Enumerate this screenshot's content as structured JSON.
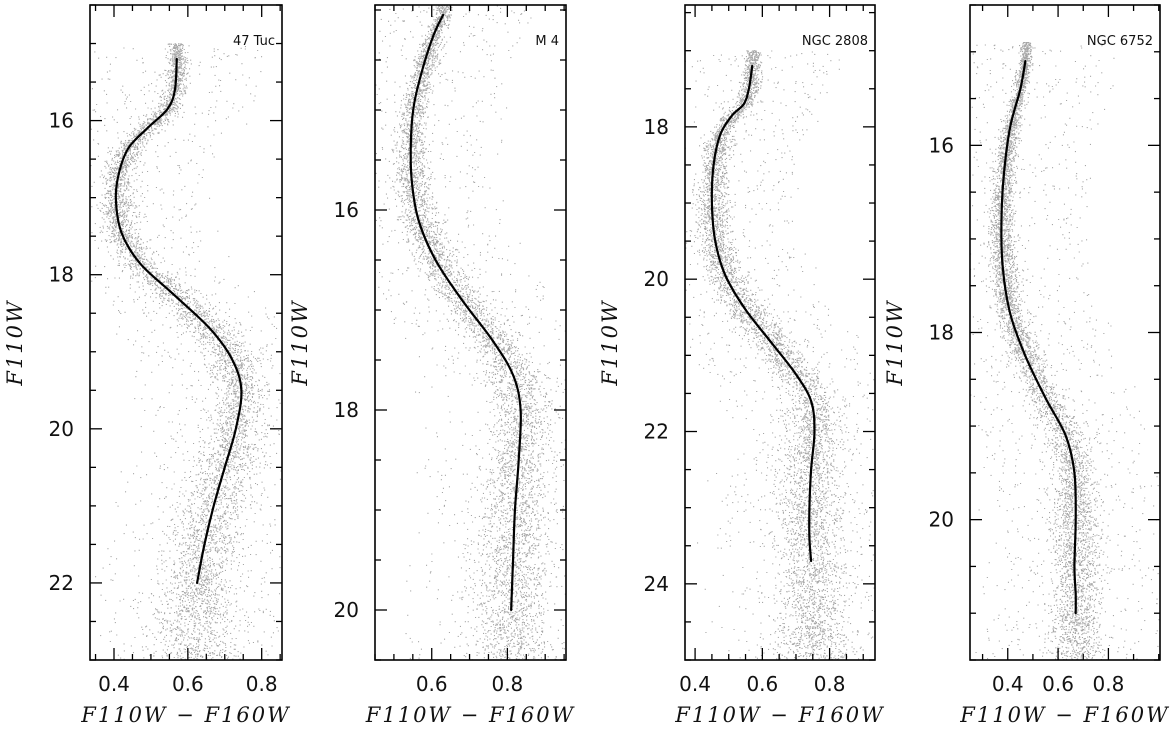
{
  "chart_data": [
    {
      "type": "scatter",
      "panel_label": "47 Tuc",
      "xlabel": "F110W − F160W",
      "ylabel": "F110W",
      "xlim": [
        0.335,
        0.855
      ],
      "ylim": [
        23.0,
        14.5
      ],
      "y_inverted": true,
      "xticks_major": [
        0.4,
        0.6,
        0.8
      ],
      "xtick_labels": [
        "0.4",
        "0.6",
        "0.8"
      ],
      "xticks_minor_step": 0.05,
      "yticks_major": [
        16,
        18,
        20,
        22
      ],
      "ytick_labels": [
        "16",
        "18",
        "20",
        "22"
      ],
      "yticks_minor_step": 0.5,
      "ridge_line": {
        "x": [
          0.57,
          0.565,
          0.545,
          0.49,
          0.44,
          0.415,
          0.405,
          0.42,
          0.47,
          0.56,
          0.66,
          0.72,
          0.745,
          0.73,
          0.7,
          0.67,
          0.645,
          0.625
        ],
        "y": [
          15.2,
          15.6,
          15.85,
          16.1,
          16.35,
          16.65,
          17.0,
          17.45,
          17.85,
          18.25,
          18.7,
          19.1,
          19.5,
          20.0,
          20.5,
          21.0,
          21.5,
          22.0
        ]
      },
      "color": "#000000",
      "point_color": "#8a8a8a"
    },
    {
      "type": "scatter",
      "panel_label": "M 4",
      "xlabel": "F110W − F160W",
      "ylabel": "F110W",
      "xlim": [
        0.45,
        0.955
      ],
      "ylim": [
        20.5,
        13.95
      ],
      "y_inverted": true,
      "xticks_major": [
        0.6,
        0.8
      ],
      "xtick_labels": [
        "0.6",
        "0.8"
      ],
      "xticks_minor_step": 0.05,
      "yticks_major": [
        16,
        18,
        20
      ],
      "ytick_labels": [
        "16",
        "18",
        "20"
      ],
      "yticks_minor_step": 0.5,
      "ridge_line": {
        "x": [
          0.63,
          0.605,
          0.575,
          0.553,
          0.545,
          0.547,
          0.565,
          0.61,
          0.68,
          0.76,
          0.815,
          0.835,
          0.83,
          0.82,
          0.815,
          0.81
        ],
        "y": [
          14.05,
          14.25,
          14.6,
          14.95,
          15.3,
          15.7,
          16.1,
          16.5,
          16.9,
          17.3,
          17.65,
          18.0,
          18.5,
          19.0,
          19.5,
          20.0
        ]
      },
      "color": "#000000",
      "point_color": "#8a8a8a"
    },
    {
      "type": "scatter",
      "panel_label": "NGC 2808",
      "xlabel": "F110W − F160W",
      "ylabel": "F110W",
      "xlim": [
        0.37,
        0.935
      ],
      "ylim": [
        25.0,
        16.4
      ],
      "y_inverted": true,
      "xticks_major": [
        0.4,
        0.6,
        0.8
      ],
      "xtick_labels": [
        "0.4",
        "0.6",
        "0.8"
      ],
      "xticks_minor_step": 0.05,
      "yticks_major": [
        18,
        20,
        22,
        24
      ],
      "ytick_labels": [
        "18",
        "20",
        "22",
        "24"
      ],
      "yticks_minor_step": 0.5,
      "ridge_line": {
        "x": [
          0.57,
          0.56,
          0.545,
          0.51,
          0.475,
          0.455,
          0.45,
          0.46,
          0.49,
          0.55,
          0.63,
          0.7,
          0.745,
          0.755,
          0.745,
          0.74,
          0.74,
          0.745
        ],
        "y": [
          17.2,
          17.5,
          17.7,
          17.85,
          18.1,
          18.5,
          19.0,
          19.5,
          19.95,
          20.4,
          20.85,
          21.25,
          21.6,
          22.0,
          22.5,
          23.0,
          23.4,
          23.7
        ]
      },
      "color": "#000000",
      "point_color": "#8a8a8a"
    },
    {
      "type": "scatter",
      "panel_label": "NGC 6752",
      "xlabel": "F110W − F160W",
      "ylabel": "F110W",
      "xlim": [
        0.25,
        1.005
      ],
      "ylim": [
        21.5,
        14.5
      ],
      "y_inverted": true,
      "xticks_major": [
        0.4,
        0.6,
        0.8
      ],
      "xtick_labels": [
        "0.4",
        "0.6",
        "0.8"
      ],
      "xticks_minor_step": 0.1,
      "yticks_major": [
        16,
        18,
        20
      ],
      "ytick_labels": [
        "16",
        "18",
        "20"
      ],
      "yticks_minor_step": 0.5,
      "ridge_line": {
        "x": [
          0.47,
          0.45,
          0.41,
          0.385,
          0.375,
          0.38,
          0.41,
          0.47,
          0.55,
          0.63,
          0.665,
          0.67,
          0.665,
          0.67,
          0.67
        ],
        "y": [
          15.1,
          15.4,
          15.8,
          16.3,
          16.8,
          17.3,
          17.8,
          18.25,
          18.7,
          19.1,
          19.5,
          20.0,
          20.5,
          20.8,
          21.0
        ]
      },
      "color": "#000000",
      "point_color": "#8a8a8a"
    }
  ]
}
